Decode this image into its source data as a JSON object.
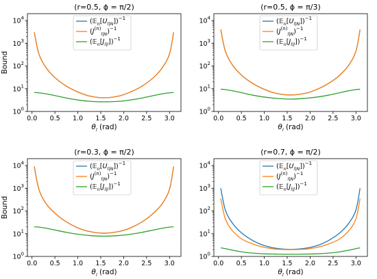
{
  "figure": {
    "ylabel_left": "Bound",
    "legend_entries": [
      {
        "parts": [
          [
            "(",
            ""
          ],
          [
            "𝔼",
            "i"
          ],
          [
            "n",
            "sub"
          ],
          [
            "[",
            ""
          ],
          [
            "U",
            "i"
          ],
          [
            "l|N",
            "sub"
          ],
          [
            "])",
            ""
          ],
          [
            "−1",
            "sup"
          ]
        ],
        "color": "#1f77b4"
      },
      {
        "parts": [
          [
            "(",
            ""
          ],
          [
            "J",
            "i"
          ],
          [
            "(n)",
            "sup"
          ],
          [
            "l|N",
            "sub"
          ],
          [
            ")",
            ""
          ],
          [
            "−1",
            "sup"
          ]
        ],
        "color": "#ff7f0e"
      },
      {
        "parts": [
          [
            "(",
            ""
          ],
          [
            "𝔼",
            "i"
          ],
          [
            "n",
            "sub"
          ],
          [
            "[",
            ""
          ],
          [
            "J",
            "i"
          ],
          [
            "l|l",
            "sub"
          ],
          [
            "])",
            ""
          ],
          [
            "−1",
            "sup"
          ]
        ],
        "color": "#2ca02c"
      }
    ]
  },
  "chart_data": [
    {
      "type": "line",
      "title": "(r=0.5, ϕ = π/2)",
      "xlabel": "θ_l (rad)",
      "ylabel": "Bound",
      "yscale": "log",
      "xlim": [
        -0.1,
        3.25
      ],
      "ylim": [
        1,
        20000
      ],
      "xticks": [
        "0.0",
        "0.5",
        "1.0",
        "1.5",
        "2.0",
        "2.5",
        "3.0"
      ],
      "yticks": [
        "10^0",
        "10^1",
        "10^2",
        "10^3",
        "10^4"
      ],
      "legend": "top-center",
      "x": [
        0.05,
        0.15,
        0.3,
        0.5,
        0.75,
        1.0,
        1.25,
        1.57,
        1.9,
        2.15,
        2.4,
        2.65,
        2.85,
        3.0,
        3.09
      ],
      "series": [
        {
          "name": "(E_n[U_l|N])^-1",
          "color": "#1f77b4",
          "values": [
            3000,
            340,
            88,
            31,
            13,
            7.2,
            4.8,
            4.0,
            4.8,
            7.2,
            13,
            31,
            88,
            340,
            3000
          ]
        },
        {
          "name": "(J_l|N^(n))^-1",
          "color": "#ff7f0e",
          "values": [
            3000,
            340,
            88,
            31,
            13,
            7.2,
            4.8,
            4.0,
            4.8,
            7.2,
            13,
            31,
            88,
            340,
            3000
          ]
        },
        {
          "name": "(E_n[J_l|l])^-1",
          "color": "#2ca02c",
          "values": [
            6.8,
            6.6,
            6.0,
            5.0,
            3.9,
            3.2,
            2.8,
            2.65,
            2.8,
            3.2,
            3.9,
            5.0,
            6.0,
            6.6,
            6.8
          ]
        }
      ]
    },
    {
      "type": "line",
      "title": "(r=0.5, ϕ = π/3)",
      "xlabel": "θ_l (rad)",
      "ylabel": "",
      "yscale": "log",
      "xlim": [
        -0.1,
        3.25
      ],
      "ylim": [
        1,
        20000
      ],
      "xticks": [
        "0.0",
        "0.5",
        "1.0",
        "1.5",
        "2.0",
        "2.5",
        "3.0"
      ],
      "yticks": [
        "10^0",
        "10^1",
        "10^2",
        "10^3",
        "10^4"
      ],
      "legend": "top-center",
      "x": [
        0.05,
        0.15,
        0.3,
        0.5,
        0.75,
        1.0,
        1.25,
        1.57,
        1.9,
        2.15,
        2.4,
        2.65,
        2.85,
        3.0,
        3.09
      ],
      "series": [
        {
          "name": "(E_n[U_l|N])^-1",
          "color": "#1f77b4",
          "values": [
            4000,
            450,
            115,
            40,
            17,
            9.4,
            6.3,
            5.3,
            6.3,
            9.4,
            17,
            40,
            115,
            450,
            4000
          ]
        },
        {
          "name": "(J_l|N^(n))^-1",
          "color": "#ff7f0e",
          "values": [
            4000,
            450,
            115,
            40,
            17,
            9.4,
            6.3,
            5.3,
            6.3,
            9.4,
            17,
            40,
            115,
            450,
            4000
          ]
        },
        {
          "name": "(E_n[J_l|l])^-1",
          "color": "#2ca02c",
          "values": [
            9.5,
            9.2,
            8.2,
            6.7,
            5.2,
            4.3,
            3.8,
            3.5,
            3.8,
            4.3,
            5.2,
            6.7,
            8.2,
            9.2,
            9.5
          ]
        }
      ]
    },
    {
      "type": "line",
      "title": "(r=0.3, ϕ = π/2)",
      "xlabel": "θ_l (rad)",
      "ylabel": "Bound",
      "yscale": "log",
      "xlim": [
        -0.1,
        3.25
      ],
      "ylim": [
        1,
        20000
      ],
      "xticks": [
        "0.0",
        "0.5",
        "1.0",
        "1.5",
        "2.0",
        "2.5",
        "3.0"
      ],
      "yticks": [
        "10^0",
        "10^1",
        "10^2",
        "10^3",
        "10^4"
      ],
      "legend": "top-center",
      "x": [
        0.05,
        0.15,
        0.3,
        0.5,
        0.75,
        1.0,
        1.25,
        1.57,
        1.9,
        2.15,
        2.4,
        2.65,
        2.85,
        3.0,
        3.09
      ],
      "series": [
        {
          "name": "(E_n[U_l|N])^-1",
          "color": "#1f77b4",
          "values": [
            9000,
            900,
            220,
            80,
            33,
            18,
            12.5,
            10.5,
            12.5,
            18,
            33,
            80,
            220,
            900,
            9000
          ]
        },
        {
          "name": "(J_l|N^(n))^-1",
          "color": "#ff7f0e",
          "values": [
            9000,
            900,
            220,
            80,
            33,
            18,
            12.5,
            10.5,
            12.5,
            18,
            33,
            80,
            220,
            900,
            9000
          ]
        },
        {
          "name": "(E_n[J_l|l])^-1",
          "color": "#2ca02c",
          "values": [
            20,
            19.5,
            17.5,
            14.5,
            11.5,
            9.5,
            8.3,
            7.8,
            8.3,
            9.5,
            11.5,
            14.5,
            17.5,
            19.5,
            20
          ]
        }
      ]
    },
    {
      "type": "line",
      "title": "(r=0.7, ϕ = π/2)",
      "xlabel": "θ_l (rad)",
      "ylabel": "",
      "yscale": "log",
      "xlim": [
        -0.1,
        3.25
      ],
      "ylim": [
        1,
        20000
      ],
      "xticks": [
        "0.0",
        "0.5",
        "1.0",
        "1.5",
        "2.0",
        "2.5",
        "3.0"
      ],
      "yticks": [
        "10^0",
        "10^1",
        "10^2",
        "10^3",
        "10^4"
      ],
      "legend": "top-center",
      "x": [
        0.05,
        0.15,
        0.3,
        0.5,
        0.75,
        1.0,
        1.25,
        1.57,
        1.9,
        2.15,
        2.4,
        2.65,
        2.85,
        3.0,
        3.09
      ],
      "series": [
        {
          "name": "(E_n[U_l|N])^-1",
          "color": "#1f77b4",
          "values": [
            1000,
            110,
            30,
            11,
            5.0,
            3.0,
            2.3,
            2.05,
            2.3,
            3.0,
            5.0,
            11,
            30,
            110,
            1000
          ]
        },
        {
          "name": "(J_l|N^(n))^-1",
          "color": "#ff7f0e",
          "values": [
            350,
            45,
            14,
            6.0,
            3.5,
            2.5,
            2.1,
            2.0,
            2.1,
            2.5,
            3.5,
            6.0,
            14,
            45,
            350
          ]
        },
        {
          "name": "(E_n[J_l|l])^-1",
          "color": "#2ca02c",
          "values": [
            2.4,
            2.2,
            1.9,
            1.6,
            1.4,
            1.3,
            1.27,
            1.25,
            1.27,
            1.3,
            1.4,
            1.6,
            1.9,
            2.2,
            2.4
          ]
        }
      ]
    }
  ]
}
